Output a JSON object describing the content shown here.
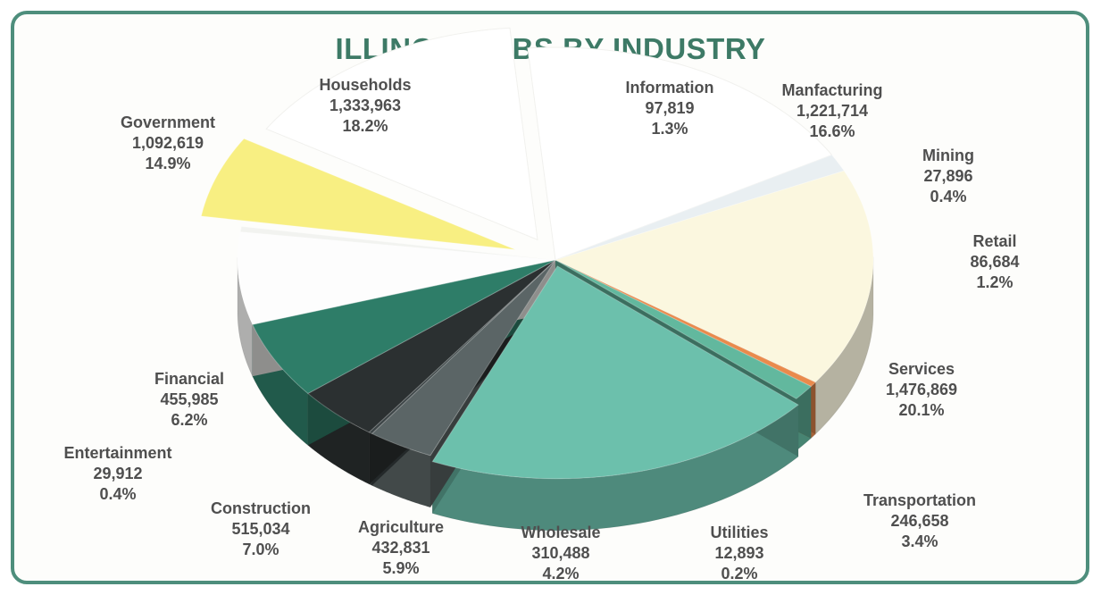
{
  "chart_data": {
    "type": "pie",
    "title": "ILLINOIS JOBS BY INDUSTRY",
    "slices": [
      {
        "label": "Households",
        "value": 1333963,
        "value_text": "1,333,963",
        "percent_text": "18.2%",
        "color": "#ffffff"
      },
      {
        "label": "Information",
        "value": 97819,
        "value_text": "97,819",
        "percent_text": "1.3%",
        "color": "#e9eff2"
      },
      {
        "label": "Manfacturing",
        "value": 1221714,
        "value_text": "1,221,714",
        "percent_text": "16.6%",
        "color": "#fbf7df"
      },
      {
        "label": "Mining",
        "value": 27896,
        "value_text": "27,896",
        "percent_text": "0.4%",
        "color": "#e98a4c"
      },
      {
        "label": "Retail",
        "value": 86684,
        "value_text": "86,684",
        "percent_text": "1.2%",
        "color": "#62b89e"
      },
      {
        "label": "Services",
        "value": 1476869,
        "value_text": "1,476,869",
        "percent_text": "20.1%",
        "color": "#6cc0ac"
      },
      {
        "label": "Transportation",
        "value": 246658,
        "value_text": "246,658",
        "percent_text": "3.4%",
        "color": "#5b6566"
      },
      {
        "label": "Utilities",
        "value": 12893,
        "value_text": "12,893",
        "percent_text": "0.2%",
        "color": "#3c4446"
      },
      {
        "label": "Wholesale",
        "value": 310488,
        "value_text": "310,488",
        "percent_text": "4.2%",
        "color": "#2b3031"
      },
      {
        "label": "Agriculture",
        "value": 432831,
        "value_text": "432,831",
        "percent_text": "5.9%",
        "color": "#2e7d68"
      },
      {
        "label": "Construction",
        "value": 515034,
        "value_text": "515,034",
        "percent_text": "7.0%",
        "color": "#fdfdfd"
      },
      {
        "label": "Entertainment",
        "value": 29912,
        "value_text": "29,912",
        "percent_text": "0.4%",
        "color": "#f2f3f0"
      },
      {
        "label": "Financial",
        "value": 455985,
        "value_text": "455,985",
        "percent_text": "6.2%",
        "color": "#f8ef82"
      },
      {
        "label": "Government",
        "value": 1092619,
        "value_text": "1,092,619",
        "percent_text": "14.9%",
        "color": "#ffffff"
      }
    ],
    "legend": "none",
    "style": "3d-exploded"
  },
  "colors": {
    "title": "#3d7a66",
    "border": "#4e8e7c",
    "label_text": "#4f4f4f"
  }
}
